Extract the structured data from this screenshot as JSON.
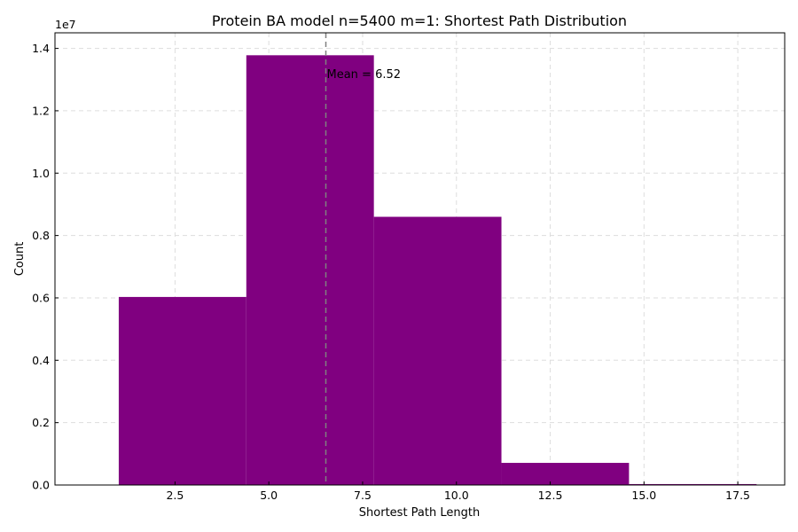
{
  "chart_data": {
    "type": "bar",
    "title": "Protein BA model n=5400 m=1: Shortest Path Distribution",
    "xlabel": "Shortest Path Length",
    "ylabel": "Count",
    "y_multiplier_label": "1e7",
    "xlim": [
      -0.7,
      18.75
    ],
    "ylim": [
      0,
      14500000
    ],
    "x_ticks": [
      2.5,
      5.0,
      7.5,
      10.0,
      12.5,
      15.0,
      17.5
    ],
    "x_tick_labels": [
      "2.5",
      "5.0",
      "7.5",
      "10.0",
      "12.5",
      "15.0",
      "17.5"
    ],
    "y_ticks": [
      0,
      2000000,
      4000000,
      6000000,
      8000000,
      10000000,
      12000000,
      14000000
    ],
    "y_tick_labels": [
      "0.0",
      "0.2",
      "0.4",
      "0.6",
      "0.8",
      "1.0",
      "1.2",
      "1.4"
    ],
    "bins": [
      {
        "start": 1.0,
        "end": 4.4,
        "count": 6030000
      },
      {
        "start": 4.4,
        "end": 7.8,
        "count": 13780000
      },
      {
        "start": 7.8,
        "end": 11.2,
        "count": 8600000
      },
      {
        "start": 11.2,
        "end": 14.6,
        "count": 710000
      },
      {
        "start": 14.6,
        "end": 18.0,
        "count": 30000
      }
    ],
    "bar_color": "#800080",
    "mean_line": {
      "value": 6.52,
      "label": "Mean = 6.52",
      "color": "#808080",
      "style": "dashed"
    },
    "grid": true
  }
}
